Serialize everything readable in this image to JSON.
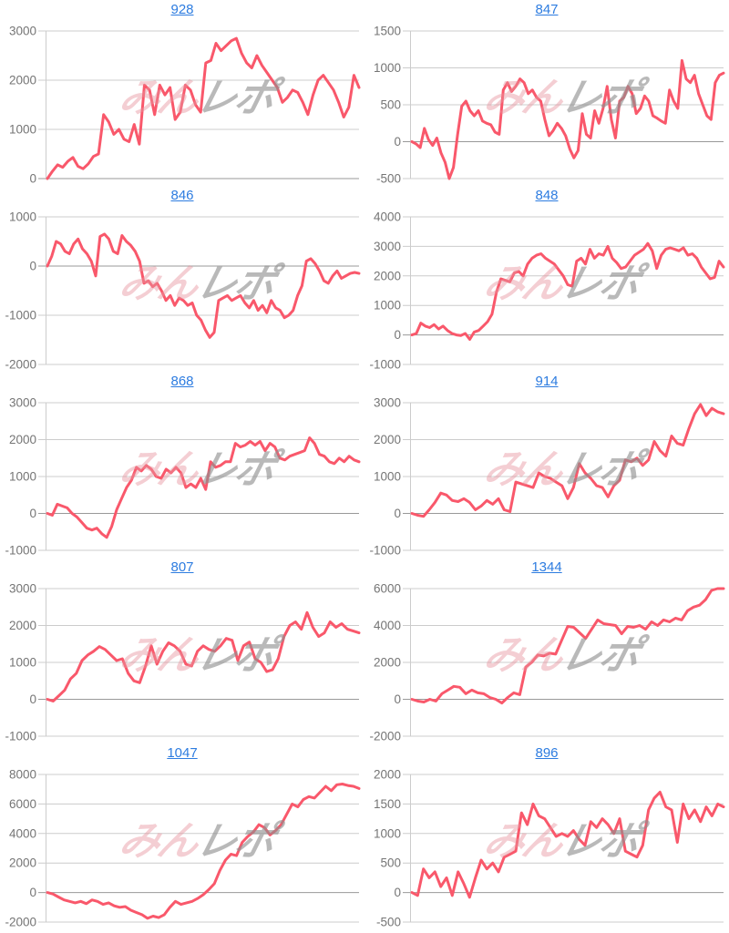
{
  "page": {
    "background": "#ffffff"
  },
  "styles": {
    "line_color": "#f9586b",
    "grid_color": "#cccccc",
    "zero_line_color": "#999999",
    "axis_label_color": "#757575",
    "title_color": "#2d7ce0",
    "watermark_pink": "#e8959f",
    "watermark_gray": "#8f8f8f"
  },
  "watermark": {
    "pink_text": "みん",
    "gray_text": "レポ"
  },
  "chart_data": [
    {
      "type": "line",
      "title": "928",
      "xlabel": "",
      "ylabel": "",
      "ylim": [
        0,
        3000
      ],
      "yticks": [
        0,
        1000,
        2000,
        3000
      ],
      "grid": true,
      "legend": "none",
      "values": [
        0,
        150,
        280,
        230,
        350,
        430,
        250,
        200,
        300,
        450,
        500,
        1300,
        1150,
        900,
        1000,
        800,
        750,
        1100,
        700,
        1900,
        1800,
        1300,
        1900,
        1700,
        1850,
        1200,
        1350,
        1900,
        1800,
        1500,
        1350,
        2350,
        2400,
        2750,
        2600,
        2700,
        2800,
        2850,
        2550,
        2350,
        2250,
        2500,
        2300,
        2150,
        2000,
        1850,
        1550,
        1650,
        1800,
        1750,
        1550,
        1300,
        1700,
        2000,
        2100,
        1950,
        1800,
        1550,
        1250,
        1450,
        2100,
        1850
      ]
    },
    {
      "type": "line",
      "title": "847",
      "xlabel": "",
      "ylabel": "",
      "ylim": [
        -500,
        1500
      ],
      "yticks": [
        -500,
        0,
        500,
        1000,
        1500
      ],
      "grid": true,
      "legend": "none",
      "values": [
        0,
        -30,
        -80,
        180,
        30,
        -50,
        50,
        -150,
        -280,
        -500,
        -350,
        100,
        480,
        550,
        420,
        350,
        420,
        280,
        250,
        230,
        130,
        100,
        700,
        800,
        680,
        750,
        850,
        800,
        650,
        700,
        600,
        550,
        300,
        80,
        150,
        250,
        180,
        80,
        -100,
        -220,
        -120,
        380,
        100,
        50,
        420,
        250,
        450,
        750,
        300,
        50,
        550,
        600,
        750,
        650,
        380,
        450,
        620,
        550,
        350,
        320,
        280,
        250,
        700,
        550,
        450,
        1100,
        850,
        800,
        900,
        650,
        500,
        350,
        300,
        800,
        900,
        930
      ]
    },
    {
      "type": "line",
      "title": "846",
      "xlabel": "",
      "ylabel": "",
      "ylim": [
        -2000,
        1000
      ],
      "yticks": [
        -2000,
        -1000,
        0,
        1000
      ],
      "grid": true,
      "legend": "none",
      "values": [
        0,
        200,
        500,
        450,
        300,
        250,
        450,
        550,
        350,
        250,
        100,
        -200,
        600,
        650,
        550,
        300,
        250,
        620,
        500,
        420,
        300,
        100,
        -350,
        -300,
        -420,
        -350,
        -500,
        -700,
        -600,
        -800,
        -650,
        -700,
        -800,
        -750,
        -1000,
        -1100,
        -1300,
        -1450,
        -1350,
        -700,
        -650,
        -600,
        -700,
        -650,
        -600,
        -750,
        -850,
        -700,
        -900,
        -800,
        -950,
        -700,
        -850,
        -900,
        -1050,
        -1000,
        -900,
        -600,
        -400,
        100,
        150,
        50,
        -100,
        -300,
        -350,
        -200,
        -100,
        -250,
        -200,
        -150,
        -130,
        -150
      ]
    },
    {
      "type": "line",
      "title": "848",
      "xlabel": "",
      "ylabel": "",
      "ylim": [
        -1000,
        4000
      ],
      "yticks": [
        -1000,
        0,
        1000,
        2000,
        3000,
        4000
      ],
      "grid": true,
      "legend": "none",
      "values": [
        0,
        50,
        400,
        300,
        250,
        350,
        200,
        300,
        150,
        50,
        0,
        -20,
        50,
        -150,
        100,
        150,
        300,
        450,
        700,
        1450,
        1900,
        1850,
        1800,
        2100,
        2150,
        2000,
        2400,
        2600,
        2700,
        2750,
        2600,
        2500,
        2400,
        2200,
        2000,
        1700,
        1650,
        2500,
        2600,
        2400,
        2900,
        2600,
        2750,
        2700,
        3000,
        2600,
        2450,
        2250,
        2300,
        2500,
        2700,
        2800,
        2900,
        3100,
        2850,
        2250,
        2700,
        2900,
        2950,
        2900,
        2850,
        2950,
        2700,
        2750,
        2600,
        2300,
        2100,
        1900,
        1950,
        2500,
        2300
      ]
    },
    {
      "type": "line",
      "title": "868",
      "xlabel": "",
      "ylabel": "",
      "ylim": [
        -1000,
        3000
      ],
      "yticks": [
        -1000,
        0,
        1000,
        2000,
        3000
      ],
      "grid": true,
      "legend": "none",
      "values": [
        0,
        -50,
        250,
        200,
        150,
        0,
        -100,
        -250,
        -400,
        -450,
        -400,
        -550,
        -650,
        -350,
        100,
        400,
        700,
        900,
        1250,
        1150,
        1300,
        1200,
        1000,
        950,
        1200,
        1100,
        1250,
        1100,
        700,
        800,
        700,
        950,
        650,
        1400,
        1250,
        1300,
        1400,
        1400,
        1900,
        1800,
        1850,
        1950,
        1850,
        1950,
        1700,
        1900,
        1800,
        1500,
        1450,
        1550,
        1600,
        1650,
        1700,
        2050,
        1900,
        1600,
        1550,
        1400,
        1350,
        1500,
        1400,
        1550,
        1450,
        1400
      ]
    },
    {
      "type": "line",
      "title": "914",
      "xlabel": "",
      "ylabel": "",
      "ylim": [
        -1000,
        3000
      ],
      "yticks": [
        -1000,
        0,
        1000,
        2000,
        3000
      ],
      "grid": true,
      "legend": "none",
      "values": [
        0,
        -50,
        -80,
        100,
        300,
        550,
        500,
        350,
        320,
        400,
        300,
        100,
        200,
        350,
        250,
        400,
        100,
        50,
        850,
        800,
        750,
        700,
        1100,
        1000,
        950,
        850,
        750,
        400,
        700,
        1350,
        1100,
        950,
        750,
        700,
        450,
        750,
        900,
        1450,
        1400,
        1500,
        1300,
        1450,
        1950,
        1700,
        1550,
        2100,
        1900,
        1850,
        2300,
        2700,
        2950,
        2650,
        2850,
        2750,
        2700
      ]
    },
    {
      "type": "line",
      "title": "807",
      "xlabel": "",
      "ylabel": "",
      "ylim": [
        -1000,
        3000
      ],
      "yticks": [
        -1000,
        0,
        1000,
        2000,
        3000
      ],
      "grid": true,
      "legend": "none",
      "values": [
        0,
        -50,
        100,
        250,
        550,
        700,
        1050,
        1200,
        1300,
        1430,
        1350,
        1200,
        1050,
        1100,
        700,
        500,
        450,
        900,
        1450,
        950,
        1300,
        1530,
        1450,
        1300,
        950,
        900,
        1300,
        1450,
        1350,
        1300,
        1450,
        1650,
        1600,
        1050,
        1450,
        1550,
        1100,
        1000,
        750,
        800,
        1100,
        1700,
        2000,
        2100,
        1900,
        2350,
        1950,
        1700,
        1800,
        2100,
        1950,
        2050,
        1900,
        1850,
        1800
      ]
    },
    {
      "type": "line",
      "title": "1344",
      "xlabel": "",
      "ylabel": "",
      "ylim": [
        -2000,
        6000
      ],
      "yticks": [
        -2000,
        0,
        2000,
        4000,
        6000
      ],
      "grid": true,
      "legend": "none",
      "values": [
        0,
        -100,
        -150,
        0,
        -100,
        300,
        500,
        700,
        650,
        300,
        500,
        350,
        300,
        100,
        0,
        -200,
        100,
        350,
        250,
        1750,
        2000,
        2400,
        2350,
        2500,
        2450,
        3200,
        3950,
        3900,
        3600,
        3300,
        3800,
        4300,
        4100,
        4050,
        4000,
        3550,
        3950,
        3900,
        4000,
        3800,
        4200,
        4000,
        4300,
        4200,
        4400,
        4300,
        4800,
        5000,
        5100,
        5400,
        5900,
        6000,
        6000
      ]
    },
    {
      "type": "line",
      "title": "1047",
      "xlabel": "",
      "ylabel": "",
      "ylim": [
        -2000,
        8000
      ],
      "yticks": [
        -2000,
        0,
        2000,
        4000,
        6000,
        8000
      ],
      "grid": true,
      "legend": "none",
      "values": [
        0,
        -100,
        -300,
        -500,
        -600,
        -700,
        -600,
        -750,
        -500,
        -600,
        -800,
        -700,
        -900,
        -1000,
        -950,
        -1200,
        -1350,
        -1500,
        -1750,
        -1600,
        -1700,
        -1500,
        -1000,
        -600,
        -800,
        -700,
        -600,
        -400,
        -150,
        200,
        600,
        1500,
        2200,
        2600,
        2500,
        3400,
        3800,
        4100,
        4600,
        4400,
        3900,
        4200,
        4600,
        5300,
        6000,
        5800,
        6300,
        6500,
        6400,
        6800,
        7200,
        6900,
        7300,
        7350,
        7250,
        7200,
        7050
      ]
    },
    {
      "type": "line",
      "title": "896",
      "xlabel": "",
      "ylabel": "",
      "ylim": [
        -500,
        2000
      ],
      "yticks": [
        -500,
        0,
        500,
        1000,
        1500,
        2000
      ],
      "grid": true,
      "legend": "none",
      "values": [
        0,
        -50,
        400,
        250,
        350,
        100,
        250,
        -50,
        350,
        150,
        -80,
        250,
        550,
        400,
        500,
        350,
        600,
        650,
        700,
        1350,
        1150,
        1500,
        1300,
        1250,
        1100,
        950,
        1000,
        950,
        1050,
        900,
        800,
        1200,
        1100,
        1250,
        1150,
        1000,
        1250,
        700,
        650,
        600,
        800,
        1400,
        1600,
        1700,
        1450,
        1400,
        850,
        1500,
        1250,
        1400,
        1200,
        1450,
        1300,
        1500,
        1450
      ]
    }
  ]
}
